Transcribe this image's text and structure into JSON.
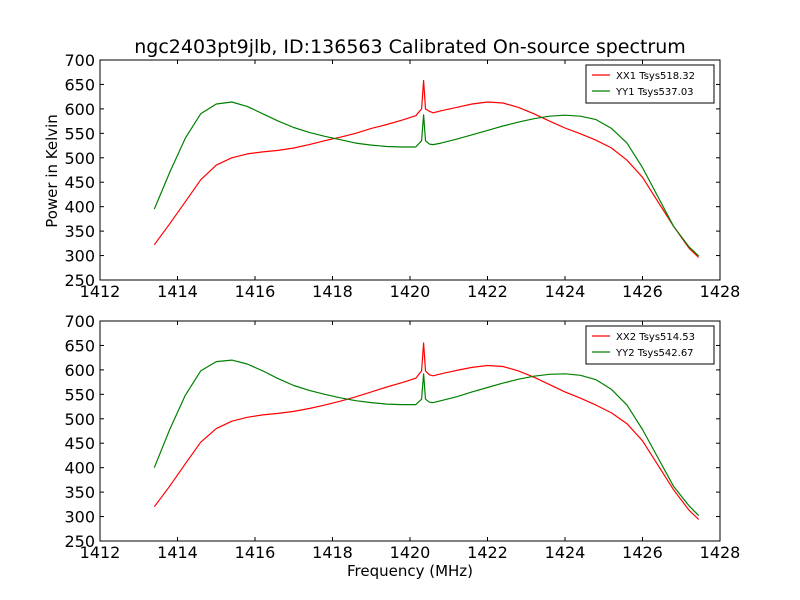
{
  "figure": {
    "title": "ngc2403pt9jlb, ID:136563 Calibrated On-source spectrum",
    "ylabel": "Power in Kelvin",
    "xlabel": "Frequency (MHz)"
  },
  "colors": {
    "xx": "#ff0000",
    "yy": "#008000"
  },
  "chart_data": [
    {
      "type": "line",
      "title": "ngc2403pt9jlb, ID:136563 Calibrated On-source spectrum",
      "xlabel": "",
      "ylabel": "Power in Kelvin",
      "xlim": [
        1412,
        1428
      ],
      "ylim": [
        250,
        700
      ],
      "xticks": [
        1412,
        1414,
        1416,
        1418,
        1420,
        1422,
        1424,
        1426,
        1428
      ],
      "yticks": [
        250,
        300,
        350,
        400,
        450,
        500,
        550,
        600,
        650,
        700
      ],
      "grid": false,
      "legend": "top-right",
      "series": [
        {
          "name": "XX1 Tsys518.32",
          "color": "#ff0000",
          "x": [
            1413.4,
            1413.8,
            1414.2,
            1414.6,
            1415.0,
            1415.4,
            1415.8,
            1416.2,
            1416.6,
            1417.0,
            1417.4,
            1417.8,
            1418.2,
            1418.6,
            1419.0,
            1419.4,
            1419.8,
            1420.15,
            1420.3,
            1420.35,
            1420.4,
            1420.5,
            1420.6,
            1420.8,
            1421.2,
            1421.6,
            1422.0,
            1422.4,
            1422.8,
            1423.2,
            1423.6,
            1424.0,
            1424.4,
            1424.8,
            1425.2,
            1425.6,
            1426.0,
            1426.4,
            1426.8,
            1427.2,
            1427.45
          ],
          "values": [
            322,
            365,
            410,
            455,
            485,
            500,
            508,
            512,
            515,
            520,
            527,
            535,
            542,
            550,
            560,
            568,
            577,
            586,
            600,
            658,
            600,
            595,
            592,
            596,
            603,
            610,
            614,
            612,
            603,
            590,
            575,
            561,
            549,
            536,
            520,
            495,
            460,
            410,
            360,
            315,
            296
          ]
        },
        {
          "name": "YY1 Tsys537.03",
          "color": "#008000",
          "x": [
            1413.4,
            1413.8,
            1414.2,
            1414.6,
            1415.0,
            1415.4,
            1415.8,
            1416.2,
            1416.6,
            1417.0,
            1417.4,
            1417.8,
            1418.2,
            1418.6,
            1419.0,
            1419.4,
            1419.8,
            1420.15,
            1420.3,
            1420.35,
            1420.4,
            1420.5,
            1420.6,
            1420.8,
            1421.2,
            1421.6,
            1422.0,
            1422.4,
            1422.8,
            1423.2,
            1423.6,
            1424.0,
            1424.4,
            1424.8,
            1425.2,
            1425.6,
            1426.0,
            1426.4,
            1426.8,
            1427.2,
            1427.45
          ],
          "values": [
            395,
            470,
            540,
            590,
            610,
            614,
            605,
            590,
            575,
            562,
            552,
            544,
            537,
            530,
            526,
            523,
            522,
            522,
            535,
            588,
            535,
            528,
            527,
            530,
            538,
            547,
            556,
            565,
            573,
            580,
            585,
            587,
            585,
            578,
            560,
            530,
            480,
            420,
            360,
            318,
            299
          ]
        }
      ]
    },
    {
      "type": "line",
      "title": "",
      "xlabel": "Frequency (MHz)",
      "ylabel": "",
      "xlim": [
        1412,
        1428
      ],
      "ylim": [
        250,
        700
      ],
      "xticks": [
        1412,
        1414,
        1416,
        1418,
        1420,
        1422,
        1424,
        1426,
        1428
      ],
      "yticks": [
        250,
        300,
        350,
        400,
        450,
        500,
        550,
        600,
        650,
        700
      ],
      "grid": false,
      "legend": "top-right",
      "series": [
        {
          "name": "XX2 Tsys514.53",
          "color": "#ff0000",
          "x": [
            1413.4,
            1413.8,
            1414.2,
            1414.6,
            1415.0,
            1415.4,
            1415.8,
            1416.2,
            1416.6,
            1417.0,
            1417.4,
            1417.8,
            1418.2,
            1418.6,
            1419.0,
            1419.4,
            1419.8,
            1420.15,
            1420.3,
            1420.35,
            1420.4,
            1420.5,
            1420.6,
            1420.8,
            1421.2,
            1421.6,
            1422.0,
            1422.4,
            1422.8,
            1423.2,
            1423.6,
            1424.0,
            1424.4,
            1424.8,
            1425.2,
            1425.6,
            1426.0,
            1426.4,
            1426.8,
            1427.2,
            1427.45
          ],
          "values": [
            320,
            362,
            408,
            452,
            480,
            495,
            503,
            508,
            511,
            515,
            521,
            528,
            536,
            545,
            555,
            565,
            574,
            583,
            598,
            655,
            598,
            590,
            588,
            592,
            599,
            605,
            609,
            607,
            598,
            585,
            570,
            555,
            542,
            528,
            512,
            490,
            455,
            405,
            355,
            313,
            294
          ]
        },
        {
          "name": "YY2 Tsys542.67",
          "color": "#008000",
          "x": [
            1413.4,
            1413.8,
            1414.2,
            1414.6,
            1415.0,
            1415.4,
            1415.8,
            1416.2,
            1416.6,
            1417.0,
            1417.4,
            1417.8,
            1418.2,
            1418.6,
            1419.0,
            1419.4,
            1419.8,
            1420.15,
            1420.3,
            1420.35,
            1420.4,
            1420.5,
            1420.6,
            1420.8,
            1421.2,
            1421.6,
            1422.0,
            1422.4,
            1422.8,
            1423.2,
            1423.6,
            1424.0,
            1424.4,
            1424.8,
            1425.2,
            1425.6,
            1426.0,
            1426.4,
            1426.8,
            1427.2,
            1427.45
          ],
          "values": [
            400,
            478,
            548,
            598,
            617,
            620,
            612,
            598,
            582,
            568,
            558,
            550,
            543,
            537,
            533,
            530,
            529,
            529,
            540,
            592,
            540,
            534,
            533,
            537,
            545,
            555,
            564,
            573,
            581,
            587,
            591,
            592,
            589,
            580,
            560,
            528,
            478,
            420,
            362,
            322,
            302
          ]
        }
      ]
    }
  ]
}
